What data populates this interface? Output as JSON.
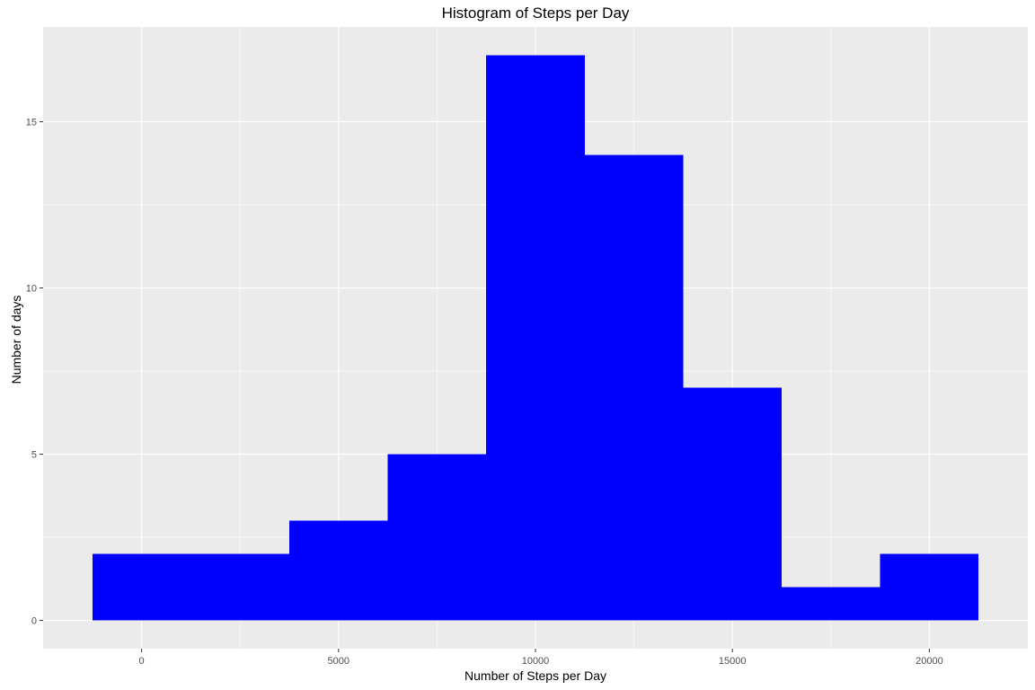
{
  "chart_data": {
    "type": "bar",
    "title": "Histogram of Steps per Day",
    "xlabel": "Number of Steps per Day",
    "ylabel": "Number of days",
    "bins": [
      {
        "start": -1250,
        "end": 1250,
        "count": 2
      },
      {
        "start": 1250,
        "end": 3750,
        "count": 2
      },
      {
        "start": 3750,
        "end": 6250,
        "count": 3
      },
      {
        "start": 6250,
        "end": 8750,
        "count": 5
      },
      {
        "start": 8750,
        "end": 11250,
        "count": 17
      },
      {
        "start": 11250,
        "end": 13750,
        "count": 14
      },
      {
        "start": 13750,
        "end": 16250,
        "count": 7
      },
      {
        "start": 16250,
        "end": 18750,
        "count": 1
      },
      {
        "start": 18750,
        "end": 21250,
        "count": 2
      }
    ],
    "xlim": [
      -2500,
      22500
    ],
    "ylim": [
      -0.85,
      17.85
    ],
    "x_ticks": [
      0,
      5000,
      10000,
      15000,
      20000
    ],
    "x_tick_labels": [
      "0",
      "5000",
      "10000",
      "15000",
      "20000"
    ],
    "y_ticks": [
      0,
      5,
      10,
      15
    ],
    "y_tick_labels": [
      "0",
      "5",
      "10",
      "15"
    ],
    "bar_color": "#0000FF",
    "panel_background": "#EBEBEB",
    "grid": true,
    "grid_color": "#FFFFFF"
  }
}
